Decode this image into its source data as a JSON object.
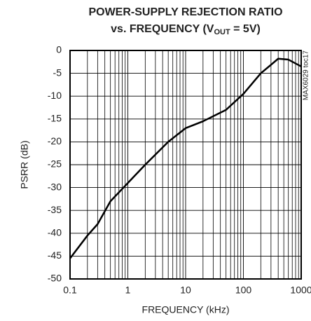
{
  "chart_data": {
    "type": "line",
    "title": "POWER-SUPPLY REJECTION RATIO",
    "subtitle_parts": [
      "vs. FREQUENCY (V",
      "OUT",
      " = 5V)"
    ],
    "annotation": "MAX6029 toc17",
    "x_label": "FREQUENCY (kHz)",
    "y_label": "PSRR (dB)",
    "x_log": true,
    "grid": true,
    "xlim": [
      0.1,
      1000
    ],
    "ylim": [
      -50,
      0
    ],
    "xticks": [
      0.1,
      1,
      10,
      100,
      1000
    ],
    "yticks": [
      0,
      -5,
      -10,
      -15,
      -20,
      -25,
      -30,
      -35,
      -40,
      -45,
      -50
    ],
    "x": [
      0.1,
      0.2,
      0.3,
      0.5,
      1,
      2,
      5,
      10,
      20,
      50,
      100,
      200,
      400,
      600,
      1000
    ],
    "series": [
      {
        "color": "#000000",
        "values": [
          -45.5,
          -40.5,
          -38,
          -33,
          -29,
          -25,
          -20,
          -17,
          -15.5,
          -13,
          -9.5,
          -5,
          -1.8,
          -2,
          -3.5
        ]
      }
    ]
  }
}
